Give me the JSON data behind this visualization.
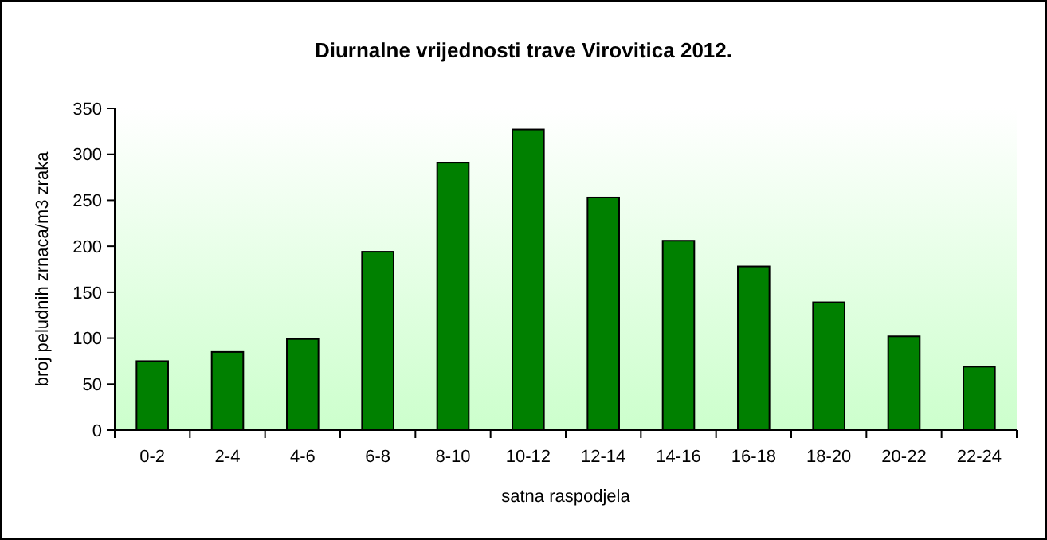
{
  "chart_data": {
    "type": "bar",
    "title": "Diurnalne vrijednosti trave Virovitica 2012.",
    "xlabel": "satna raspodjela",
    "ylabel": "broj peludnih zrnaca/m3 zraka",
    "categories": [
      "0-2",
      "2-4",
      "4-6",
      "6-8",
      "8-10",
      "10-12",
      "12-14",
      "14-16",
      "16-18",
      "18-20",
      "20-22",
      "22-24"
    ],
    "values": [
      75,
      85,
      99,
      194,
      291,
      327,
      253,
      206,
      178,
      139,
      102,
      69
    ],
    "color": "#008000",
    "ylim": [
      0,
      350
    ],
    "yticks": [
      0,
      50,
      100,
      150,
      200,
      250,
      300,
      350
    ],
    "grid": false
  }
}
